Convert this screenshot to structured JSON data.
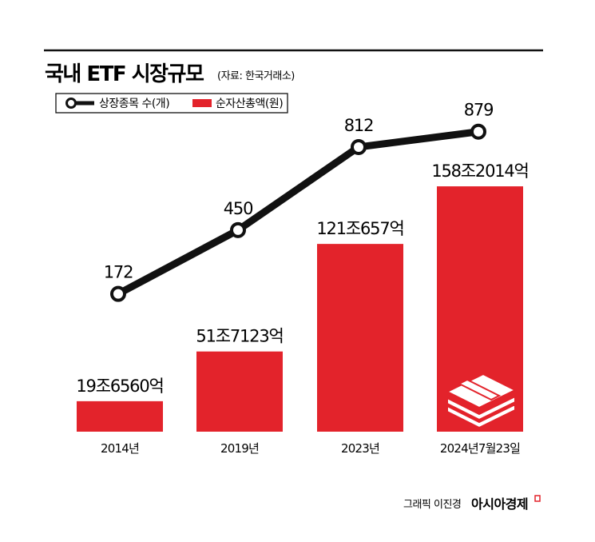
{
  "header": {
    "title": "국내 ETF 시장규모",
    "source": "(자료: 한국거래소)"
  },
  "legend": [
    {
      "label": "상장종목 수(개)",
      "marker": "line-circle"
    },
    {
      "label": "순자산총액(원)",
      "marker": "red-square"
    }
  ],
  "colors": {
    "bar": "#e3232b",
    "line": "#111111"
  },
  "chart_data": {
    "type": "bar+line",
    "categories": [
      "2014년",
      "2019년",
      "2023년",
      "2024년7월23일"
    ],
    "series": [
      {
        "name": "순자산총액(원)",
        "type": "bar",
        "values": [
          19.656,
          51.7123,
          121.0657,
          158.2014
        ],
        "unit": "조",
        "labels": [
          "19조6560억",
          "51조7123억",
          "121조657억",
          "158조2014억"
        ]
      },
      {
        "name": "상장종목 수(개)",
        "type": "line",
        "values": [
          172,
          450,
          812,
          879
        ],
        "labels": [
          "172",
          "450",
          "812",
          "879"
        ]
      }
    ],
    "grid": false,
    "legend_position": "top-left"
  },
  "footer": {
    "credit": "그래픽 이진경",
    "brand": "아시아경제"
  },
  "icons": {
    "bar4_icon": "money-stack-icon"
  }
}
